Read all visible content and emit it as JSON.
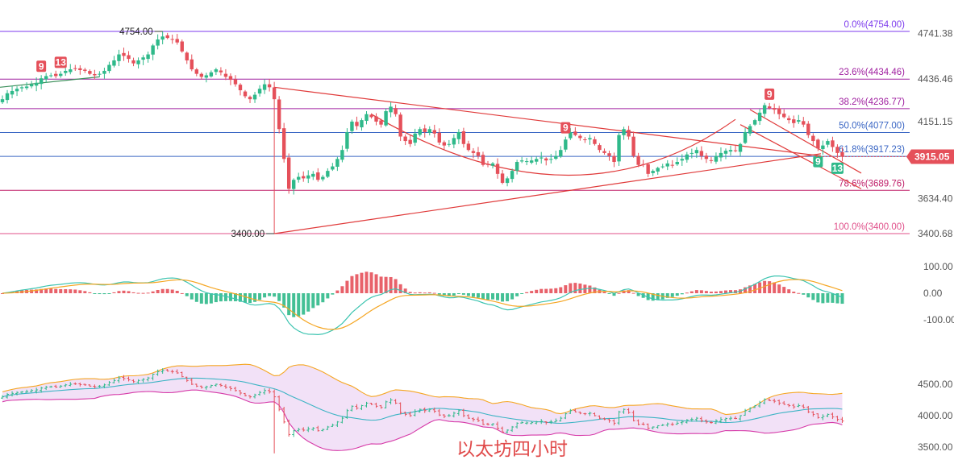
{
  "chart_data": {
    "type": "candlestick",
    "caption": "以太坊四小时",
    "timeframe_note": "",
    "price_axis": {
      "ticks": [
        "4741.38",
        "4436.46",
        "4151.15",
        "3634.40",
        "3400.68"
      ],
      "range": [
        3330,
        4830
      ]
    },
    "current_price": {
      "value": 3915.05,
      "label": "3915.05"
    },
    "fib_levels": [
      {
        "pct": "0.0%",
        "value": 4754.0,
        "label": "0.0%(4754.00)",
        "color": "#7c3aed"
      },
      {
        "pct": "23.6%",
        "value": 4434.46,
        "label": "23.6%(4434.46)",
        "color": "#a020a0"
      },
      {
        "pct": "38.2%",
        "value": 4236.77,
        "label": "38.2%(4236.77)",
        "color": "#a020a0"
      },
      {
        "pct": "50.0%",
        "value": 4077.0,
        "label": "50.0%(4077.00)",
        "color": "#3a66c4"
      },
      {
        "pct": "61.8%",
        "value": 3917.23,
        "label": "61.8%(3917.23)",
        "color": "#3a66c4"
      },
      {
        "pct": "78.6%",
        "value": 3689.76,
        "label": "78.6%(3689.76)",
        "color": "#c0206a"
      },
      {
        "pct": "100.0%",
        "value": 3400.0,
        "label": "100.0%(3400.00)",
        "color": "#e0508a"
      }
    ],
    "extreme_labels": {
      "high": "4754.00",
      "low": "3400.00"
    },
    "td_markers": [
      {
        "text": "9",
        "type": "sell",
        "index": 8
      },
      {
        "text": "13",
        "type": "sell",
        "index": 12
      },
      {
        "text": "9",
        "type": "sell",
        "index": 116
      },
      {
        "text": "9",
        "type": "sell",
        "index": 158
      },
      {
        "text": "9",
        "type": "buy",
        "index": 168
      },
      {
        "text": "13",
        "type": "buy",
        "index": 172
      }
    ],
    "closes": [
      4300,
      4340,
      4355,
      4370,
      4380,
      4385,
      4400,
      4410,
      4440,
      4455,
      4460,
      4455,
      4470,
      4490,
      4500,
      4505,
      4495,
      4490,
      4470,
      4460,
      4470,
      4490,
      4530,
      4560,
      4600,
      4590,
      4570,
      4540,
      4560,
      4580,
      4600,
      4660,
      4700,
      4720,
      4710,
      4700,
      4680,
      4620,
      4560,
      4500,
      4470,
      4450,
      4460,
      4480,
      4500,
      4480,
      4450,
      4430,
      4400,
      4360,
      4320,
      4300,
      4330,
      4370,
      4400,
      4380,
      4300,
      4100,
      3900,
      3700,
      3760,
      3780,
      3770,
      3790,
      3800,
      3760,
      3780,
      3820,
      3850,
      3900,
      3960,
      4080,
      4150,
      4120,
      4160,
      4200,
      4180,
      4150,
      4130,
      4220,
      4250,
      4200,
      4050,
      4020,
      4000,
      4070,
      4100,
      4080,
      4100,
      4070,
      4010,
      3990,
      4000,
      4040,
      4080,
      4000,
      3960,
      3940,
      3920,
      3860,
      3860,
      3870,
      3800,
      3740,
      3770,
      3820,
      3880,
      3890,
      3885,
      3890,
      3900,
      3910,
      3890,
      3900,
      3920,
      3960,
      4030,
      4080,
      4060,
      4040,
      4030,
      4040,
      4000,
      3960,
      3940,
      3920,
      3880,
      4060,
      4100,
      4050,
      3920,
      3860,
      3860,
      3800,
      3820,
      3840,
      3850,
      3870,
      3860,
      3880,
      3900,
      3930,
      3940,
      3960,
      3920,
      3900,
      3890,
      3920,
      3940,
      3955,
      3960,
      3955,
      4000,
      4080,
      4120,
      4160,
      4210,
      4260,
      4240,
      4230,
      4200,
      4180,
      4160,
      4140,
      4160,
      4130,
      4060,
      4020,
      3970,
      3990,
      4020,
      3980,
      3940,
      3915
    ],
    "macd_axis": {
      "ticks": [
        "100.00",
        "0.00",
        "-100.00"
      ],
      "range": [
        -220,
        130
      ]
    },
    "macd_note": "MACD histogram with DIF and DEA lines",
    "bb_axis": {
      "ticks": [
        "4500.00",
        "4000.00",
        "3500.00"
      ],
      "range": [
        3400,
        4860
      ]
    },
    "bb_note": "Bollinger Bands (upper / middle / lower) with price bars"
  }
}
